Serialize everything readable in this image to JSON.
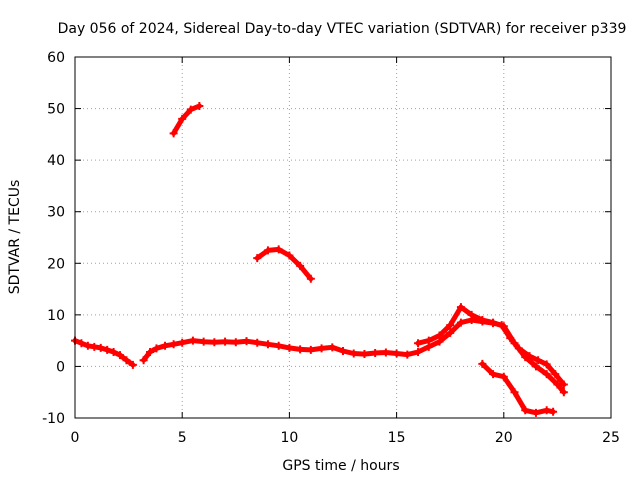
{
  "chart_data": {
    "type": "scatter",
    "title": "Day 056 of 2024, Sidereal Day-to-day VTEC variation (SDTVAR) for receiver p339",
    "xlabel": "GPS time / hours",
    "ylabel": "SDTVAR / TECUs",
    "xlim": [
      0,
      25
    ],
    "ylim": [
      -10,
      60
    ],
    "xticks": [
      "0",
      "5",
      "10",
      "15",
      "20",
      "25"
    ],
    "yticks": [
      "-10",
      "0",
      "10",
      "20",
      "30",
      "40",
      "50",
      "60"
    ],
    "grid": true,
    "series": [
      {
        "name": "SDTVAR",
        "color": "#ff0000",
        "segments": [
          [
            [
              0.0,
              5.0
            ],
            [
              0.3,
              4.5
            ],
            [
              0.6,
              4.0
            ],
            [
              0.9,
              3.8
            ],
            [
              1.2,
              3.6
            ],
            [
              1.5,
              3.2
            ],
            [
              1.8,
              2.8
            ],
            [
              2.1,
              2.2
            ],
            [
              2.4,
              1.2
            ],
            [
              2.7,
              0.3
            ]
          ],
          [
            [
              3.2,
              1.2
            ],
            [
              3.5,
              2.8
            ],
            [
              3.8,
              3.5
            ],
            [
              4.2,
              4.0
            ],
            [
              4.6,
              4.3
            ],
            [
              5.0,
              4.6
            ],
            [
              5.5,
              5.0
            ],
            [
              6.0,
              4.8
            ],
            [
              6.5,
              4.7
            ],
            [
              7.0,
              4.8
            ],
            [
              7.5,
              4.7
            ],
            [
              8.0,
              4.9
            ],
            [
              8.5,
              4.6
            ],
            [
              9.0,
              4.3
            ],
            [
              9.5,
              4.0
            ],
            [
              10.0,
              3.6
            ],
            [
              10.5,
              3.3
            ],
            [
              11.0,
              3.2
            ],
            [
              11.5,
              3.5
            ],
            [
              12.0,
              3.7
            ],
            [
              12.5,
              3.0
            ],
            [
              13.0,
              2.5
            ],
            [
              13.5,
              2.4
            ],
            [
              14.0,
              2.6
            ],
            [
              14.5,
              2.7
            ],
            [
              15.0,
              2.5
            ],
            [
              15.5,
              2.3
            ],
            [
              16.0,
              2.8
            ],
            [
              16.5,
              3.8
            ],
            [
              17.0,
              4.8
            ],
            [
              17.5,
              6.5
            ],
            [
              18.0,
              8.5
            ],
            [
              18.5,
              9.0
            ],
            [
              19.0,
              8.7
            ],
            [
              19.5,
              8.4
            ],
            [
              19.9,
              8.0
            ],
            [
              20.3,
              5.5
            ],
            [
              20.7,
              3.5
            ],
            [
              21.2,
              2.0
            ],
            [
              21.6,
              1.2
            ],
            [
              22.0,
              0.4
            ],
            [
              22.4,
              -1.5
            ],
            [
              22.8,
              -3.5
            ]
          ],
          [
            [
              16.0,
              4.5
            ],
            [
              16.5,
              5.0
            ],
            [
              17.0,
              6.0
            ],
            [
              17.5,
              8.0
            ],
            [
              18.0,
              11.5
            ],
            [
              18.5,
              10.0
            ],
            [
              19.0,
              9.0
            ],
            [
              19.5,
              8.5
            ],
            [
              20.0,
              7.8
            ],
            [
              20.5,
              4.5
            ],
            [
              21.0,
              1.8
            ],
            [
              21.5,
              0.0
            ],
            [
              22.0,
              -1.5
            ],
            [
              22.5,
              -3.5
            ],
            [
              22.8,
              -5.0
            ]
          ],
          [
            [
              19.0,
              0.5
            ],
            [
              19.5,
              -1.5
            ],
            [
              20.0,
              -2.0
            ],
            [
              20.5,
              -5.0
            ],
            [
              21.0,
              -8.5
            ],
            [
              21.5,
              -9.0
            ],
            [
              22.0,
              -8.5
            ],
            [
              22.3,
              -8.8
            ]
          ],
          [
            [
              4.6,
              45.2
            ],
            [
              5.0,
              48.0
            ],
            [
              5.4,
              49.8
            ],
            [
              5.8,
              50.5
            ]
          ],
          [
            [
              8.5,
              21.0
            ],
            [
              9.0,
              22.5
            ],
            [
              9.5,
              22.7
            ],
            [
              10.0,
              21.5
            ],
            [
              10.5,
              19.5
            ],
            [
              11.0,
              17.0
            ]
          ]
        ]
      }
    ]
  }
}
